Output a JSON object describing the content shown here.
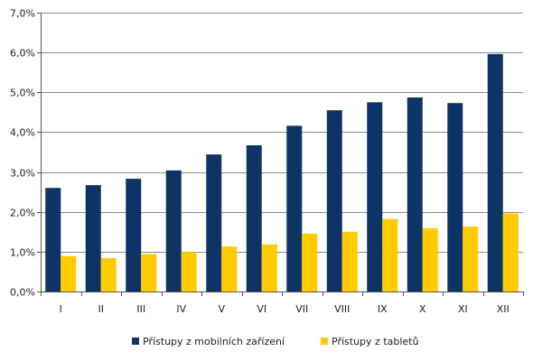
{
  "chart_data": {
    "type": "bar",
    "categories": [
      "I",
      "II",
      "III",
      "IV",
      "V",
      "VI",
      "VII",
      "VIII",
      "IX",
      "X",
      "XI",
      "XII"
    ],
    "series": [
      {
        "name": "Přístupy z mobilních zařízení",
        "color": "#0e3466",
        "values": [
          2.6,
          2.67,
          2.83,
          3.04,
          3.44,
          3.67,
          4.16,
          4.55,
          4.75,
          4.87,
          4.73,
          5.96
        ]
      },
      {
        "name": "Přístupy z tabletů",
        "color": "#ffcc00",
        "values": [
          0.89,
          0.84,
          0.94,
          0.99,
          1.13,
          1.18,
          1.45,
          1.5,
          1.82,
          1.59,
          1.63,
          1.96
        ]
      }
    ],
    "y_ticks": [
      "0,0%",
      "1,0%",
      "2,0%",
      "3,0%",
      "4,0%",
      "5,0%",
      "6,0%",
      "7,0%"
    ],
    "ylim": [
      0,
      7
    ],
    "grid": true,
    "legend_position": "bottom"
  }
}
